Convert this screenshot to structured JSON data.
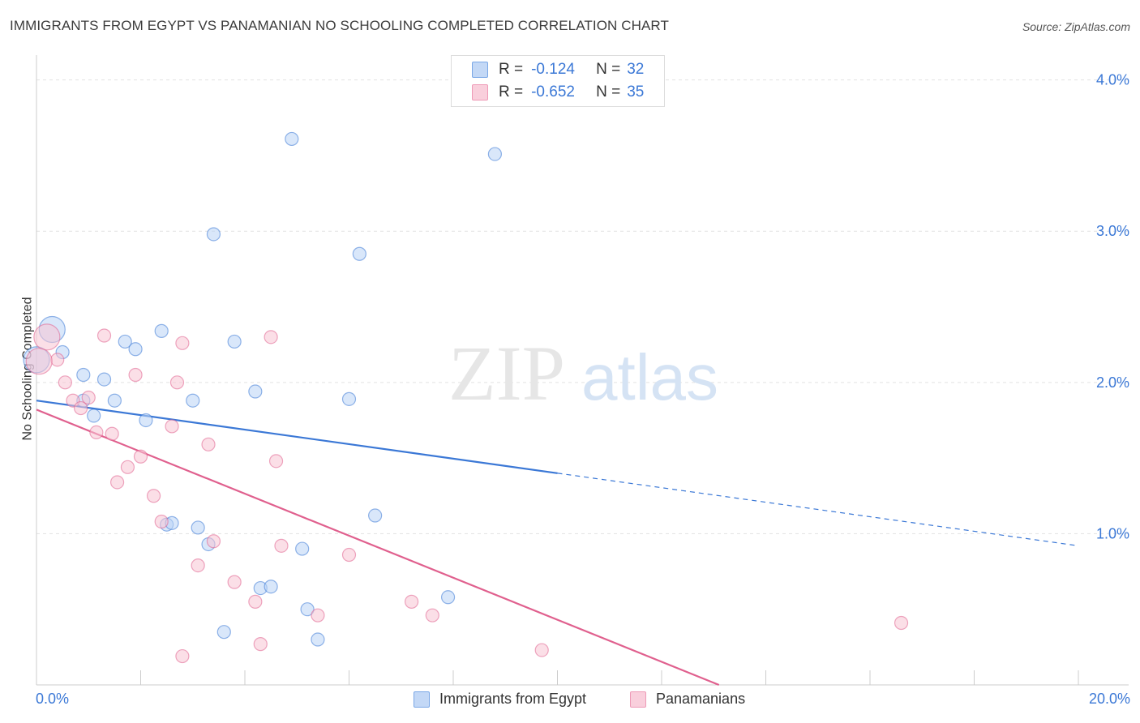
{
  "title": "IMMIGRANTS FROM EGYPT VS PANAMANIAN NO SCHOOLING COMPLETED CORRELATION CHART",
  "source": "Source: ZipAtlas.com",
  "watermark": {
    "zip": "ZIP",
    "atlas": "atlas"
  },
  "colors": {
    "blue": "#3b78d6",
    "pink": "#e0608e",
    "blue_fill": "#b9d3f6",
    "pink_fill": "#f8c4d4",
    "grid": "#e2e2e2"
  },
  "legend_top": {
    "rows": [
      {
        "r_label": "R =",
        "r_value": "-0.124",
        "n_label": "N =",
        "n_value": "32"
      },
      {
        "r_label": "R =",
        "r_value": "-0.652",
        "n_label": "N =",
        "n_value": "35"
      }
    ]
  },
  "chart_data": {
    "type": "scatter",
    "title": "IMMIGRANTS FROM EGYPT VS PANAMANIAN NO SCHOOLING COMPLETED CORRELATION CHART",
    "xlabel": "",
    "ylabel": "No Schooling Completed",
    "xlim": [
      0,
      20
    ],
    "ylim": [
      0,
      4.1
    ],
    "x_tick_labels": [
      "0.0%",
      "20.0%"
    ],
    "y_ticks": [
      1.0,
      2.0,
      3.0,
      4.0
    ],
    "y_tick_labels": [
      "1.0%",
      "2.0%",
      "3.0%",
      "4.0%"
    ],
    "grid": true,
    "legend": "bottom-center",
    "series": [
      {
        "name": "Immigrants from Egypt",
        "color": "#3b78d6",
        "points": [
          {
            "x": 0.3,
            "y": 2.35,
            "big": true
          },
          {
            "x": 0.5,
            "y": 2.2
          },
          {
            "x": 0.9,
            "y": 2.05
          },
          {
            "x": 0.9,
            "y": 1.88
          },
          {
            "x": 1.3,
            "y": 2.02
          },
          {
            "x": 1.5,
            "y": 1.88
          },
          {
            "x": 1.1,
            "y": 1.78
          },
          {
            "x": 1.7,
            "y": 2.27
          },
          {
            "x": 1.9,
            "y": 2.22
          },
          {
            "x": 2.1,
            "y": 1.75
          },
          {
            "x": 2.4,
            "y": 2.34
          },
          {
            "x": 3.0,
            "y": 1.88
          },
          {
            "x": 3.4,
            "y": 2.98
          },
          {
            "x": 3.8,
            "y": 2.27
          },
          {
            "x": 4.2,
            "y": 1.94
          },
          {
            "x": 4.9,
            "y": 3.61
          },
          {
            "x": 6.2,
            "y": 2.85
          },
          {
            "x": 8.8,
            "y": 3.51
          },
          {
            "x": 6.0,
            "y": 1.89
          },
          {
            "x": 6.5,
            "y": 1.12
          },
          {
            "x": 2.5,
            "y": 1.06
          },
          {
            "x": 2.6,
            "y": 1.07
          },
          {
            "x": 3.1,
            "y": 1.04
          },
          {
            "x": 3.3,
            "y": 0.93
          },
          {
            "x": 5.1,
            "y": 0.9
          },
          {
            "x": 4.3,
            "y": 0.64
          },
          {
            "x": 4.5,
            "y": 0.65
          },
          {
            "x": 5.2,
            "y": 0.5
          },
          {
            "x": 7.9,
            "y": 0.58
          },
          {
            "x": 3.6,
            "y": 0.35
          },
          {
            "x": 5.4,
            "y": 0.3
          },
          {
            "x": 0.0,
            "y": 2.15,
            "big": true
          }
        ],
        "trend": {
          "x1": 0,
          "y1": 1.88,
          "x2": 10,
          "y2": 1.4,
          "dash_x2": 20,
          "dash_y2": 0.92
        }
      },
      {
        "name": "Panamanians",
        "color": "#e0608e",
        "points": [
          {
            "x": 0.2,
            "y": 2.3,
            "big": true
          },
          {
            "x": 0.4,
            "y": 2.15
          },
          {
            "x": 0.55,
            "y": 2.0
          },
          {
            "x": 0.7,
            "y": 1.88
          },
          {
            "x": 0.85,
            "y": 1.83
          },
          {
            "x": 1.0,
            "y": 1.9
          },
          {
            "x": 1.15,
            "y": 1.67
          },
          {
            "x": 1.45,
            "y": 1.66
          },
          {
            "x": 1.3,
            "y": 2.31
          },
          {
            "x": 1.9,
            "y": 2.05
          },
          {
            "x": 2.0,
            "y": 1.51
          },
          {
            "x": 1.75,
            "y": 1.44
          },
          {
            "x": 1.55,
            "y": 1.34
          },
          {
            "x": 2.25,
            "y": 1.25
          },
          {
            "x": 2.6,
            "y": 1.71
          },
          {
            "x": 2.8,
            "y": 2.26
          },
          {
            "x": 2.7,
            "y": 2.0
          },
          {
            "x": 3.3,
            "y": 1.59
          },
          {
            "x": 4.5,
            "y": 2.3
          },
          {
            "x": 4.6,
            "y": 1.48
          },
          {
            "x": 2.4,
            "y": 1.08
          },
          {
            "x": 3.4,
            "y": 0.95
          },
          {
            "x": 3.1,
            "y": 0.79
          },
          {
            "x": 3.8,
            "y": 0.68
          },
          {
            "x": 4.7,
            "y": 0.92
          },
          {
            "x": 6.0,
            "y": 0.86
          },
          {
            "x": 4.2,
            "y": 0.55
          },
          {
            "x": 5.4,
            "y": 0.46
          },
          {
            "x": 7.2,
            "y": 0.55
          },
          {
            "x": 7.6,
            "y": 0.46
          },
          {
            "x": 4.3,
            "y": 0.27
          },
          {
            "x": 2.8,
            "y": 0.19
          },
          {
            "x": 9.7,
            "y": 0.23
          },
          {
            "x": 16.6,
            "y": 0.41
          },
          {
            "x": 0.05,
            "y": 2.14,
            "big": true
          }
        ],
        "trend": {
          "x1": 0,
          "y1": 1.82,
          "x2": 13.1,
          "y2": 0.0
        }
      }
    ]
  },
  "bottom_legend": [
    "Immigrants from Egypt",
    "Panamanians"
  ]
}
